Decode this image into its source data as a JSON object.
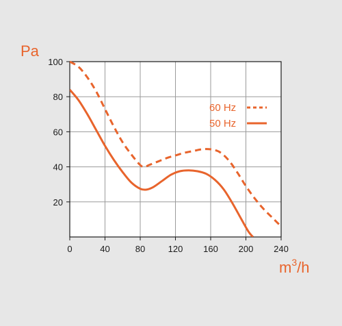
{
  "chart_data": {
    "type": "line",
    "title": "",
    "ylabel": "Pa",
    "xlabel_base": "m",
    "xlabel_exponent": "3",
    "xlabel_suffix": "/h",
    "xlim": [
      0,
      240
    ],
    "ylim": [
      0,
      100
    ],
    "x_ticks": [
      0,
      40,
      80,
      120,
      160,
      200,
      240
    ],
    "y_ticks": [
      20,
      40,
      60,
      80,
      100
    ],
    "grid": true,
    "legend_position": "right",
    "series": [
      {
        "name": "60 Hz",
        "style": "dashed",
        "points": [
          [
            0,
            100
          ],
          [
            10,
            97
          ],
          [
            20,
            91
          ],
          [
            30,
            83
          ],
          [
            40,
            73
          ],
          [
            50,
            63
          ],
          [
            60,
            54
          ],
          [
            70,
            47
          ],
          [
            80,
            41
          ],
          [
            85,
            40
          ],
          [
            90,
            41
          ],
          [
            100,
            43
          ],
          [
            110,
            45
          ],
          [
            120,
            46.5
          ],
          [
            130,
            48
          ],
          [
            140,
            49
          ],
          [
            150,
            50
          ],
          [
            160,
            50
          ],
          [
            170,
            48.5
          ],
          [
            180,
            44
          ],
          [
            190,
            37
          ],
          [
            200,
            29
          ],
          [
            210,
            22
          ],
          [
            220,
            16
          ],
          [
            230,
            11
          ],
          [
            238,
            7
          ]
        ]
      },
      {
        "name": "50 Hz",
        "style": "solid",
        "points": [
          [
            0,
            84
          ],
          [
            10,
            78
          ],
          [
            20,
            70
          ],
          [
            30,
            61
          ],
          [
            40,
            52
          ],
          [
            50,
            44
          ],
          [
            60,
            37
          ],
          [
            70,
            31
          ],
          [
            80,
            27.5
          ],
          [
            87,
            27
          ],
          [
            95,
            28.5
          ],
          [
            105,
            32
          ],
          [
            115,
            35.5
          ],
          [
            125,
            37.5
          ],
          [
            135,
            38
          ],
          [
            145,
            37.5
          ],
          [
            155,
            36
          ],
          [
            165,
            32.5
          ],
          [
            175,
            27
          ],
          [
            185,
            19
          ],
          [
            195,
            10
          ],
          [
            203,
            3
          ],
          [
            208,
            0
          ]
        ]
      }
    ]
  },
  "colors": {
    "background": "#e7e7e7",
    "plot_background": "#ffffff",
    "accent": "#e8642c",
    "grid": "#9a9a9a",
    "frame": "#1a1a1a"
  }
}
